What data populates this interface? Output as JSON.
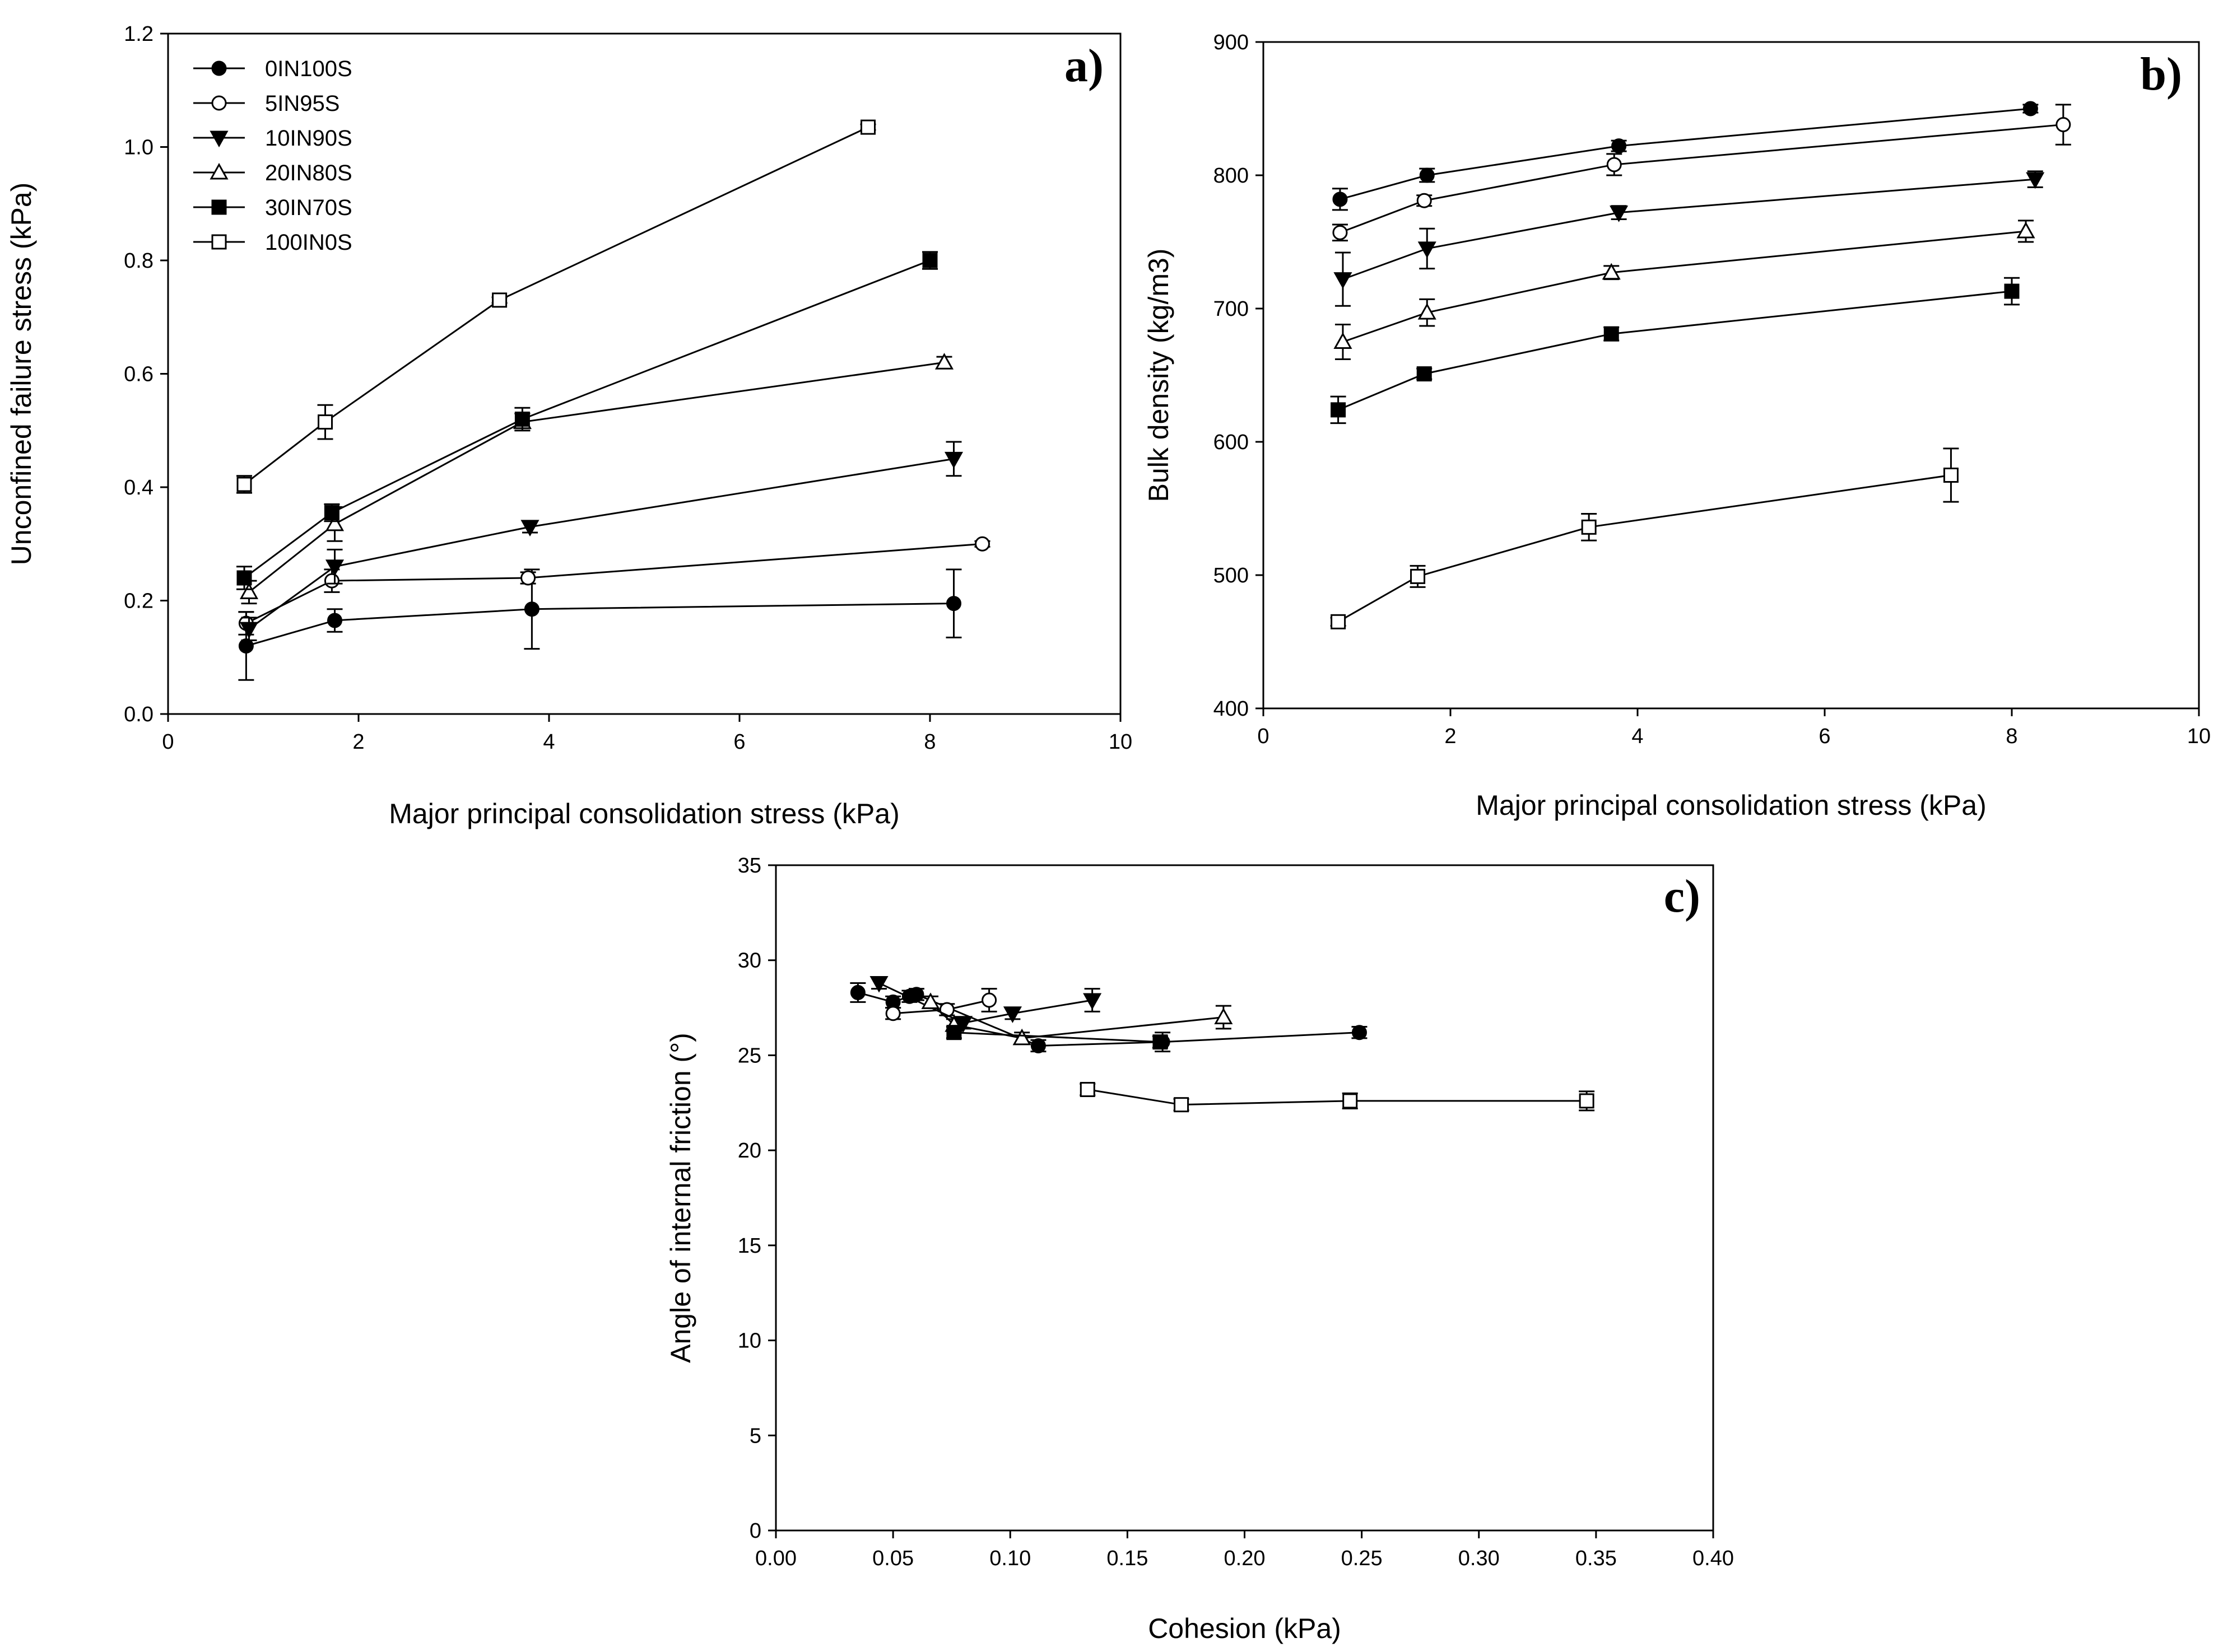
{
  "series_styles": [
    {
      "name": "0IN100S",
      "marker": "circle",
      "fill": "#000000"
    },
    {
      "name": "5IN95S",
      "marker": "circle",
      "fill": "#ffffff"
    },
    {
      "name": "10IN90S",
      "marker": "tri-down",
      "fill": "#000000"
    },
    {
      "name": "20IN80S",
      "marker": "tri-up",
      "fill": "#ffffff"
    },
    {
      "name": "30IN70S",
      "marker": "square",
      "fill": "#000000"
    },
    {
      "name": "100IN0S",
      "marker": "square",
      "fill": "#ffffff"
    }
  ],
  "chart_data": [
    {
      "panel": "a)",
      "type": "line",
      "xlabel": "Major principal consolidation stress (kPa)",
      "ylabel": "Unconfined failure stress (kPa)",
      "xlim": [
        0,
        10
      ],
      "ylim": [
        0,
        1.2
      ],
      "xticks": [
        0,
        2,
        4,
        6,
        8,
        10
      ],
      "xticklabels": [
        "0",
        "2",
        "4",
        "6",
        "8",
        "10"
      ],
      "yticks": [
        0,
        0.2,
        0.4,
        0.6,
        0.8,
        1.0,
        1.2
      ],
      "yticklabels": [
        "0.0",
        "0.2",
        "0.4",
        "0.6",
        "0.8",
        "1.0",
        "1.2"
      ],
      "legend": "top-left",
      "series": [
        {
          "name": "0IN100S",
          "x": [
            0.82,
            1.75,
            3.82,
            8.25
          ],
          "y": [
            0.12,
            0.165,
            0.185,
            0.195
          ],
          "err": [
            0.06,
            0.02,
            0.07,
            0.06
          ]
        },
        {
          "name": "5IN95S",
          "x": [
            0.82,
            1.72,
            3.78,
            8.55
          ],
          "y": [
            0.16,
            0.235,
            0.24,
            0.3
          ],
          "err": [
            0.02,
            0.02,
            0.01,
            0.005
          ]
        },
        {
          "name": "10IN90S",
          "x": [
            0.85,
            1.75,
            3.8,
            8.25
          ],
          "y": [
            0.15,
            0.26,
            0.33,
            0.45
          ],
          "err": [
            0.02,
            0.03,
            0.01,
            0.03
          ]
        },
        {
          "name": "20IN80S",
          "x": [
            0.85,
            1.75,
            3.72,
            8.15
          ],
          "y": [
            0.215,
            0.335,
            0.515,
            0.62
          ],
          "err": [
            0.02,
            0.03,
            0.015,
            0.01
          ]
        },
        {
          "name": "30IN70S",
          "x": [
            0.8,
            1.72,
            3.72,
            8.0
          ],
          "y": [
            0.24,
            0.355,
            0.52,
            0.8
          ],
          "err": [
            0.02,
            0.015,
            0.02,
            0.015
          ]
        },
        {
          "name": "100IN0S",
          "x": [
            0.8,
            1.65,
            3.48,
            7.35
          ],
          "y": [
            0.405,
            0.515,
            0.73,
            1.035
          ],
          "err": [
            0.015,
            0.03,
            0.005,
            0.005
          ]
        }
      ]
    },
    {
      "panel": "b)",
      "type": "line",
      "xlabel": "Major principal consolidation stress (kPa)",
      "ylabel": "Bulk density (kg/m3)",
      "xlim": [
        0,
        10
      ],
      "ylim": [
        400,
        900
      ],
      "xticks": [
        0,
        2,
        4,
        6,
        8,
        10
      ],
      "xticklabels": [
        "0",
        "2",
        "4",
        "6",
        "8",
        "10"
      ],
      "yticks": [
        400,
        500,
        600,
        700,
        800,
        900
      ],
      "yticklabels": [
        "400",
        "500",
        "600",
        "700",
        "800",
        "900"
      ],
      "series": [
        {
          "name": "0IN100S",
          "x": [
            0.82,
            1.75,
            3.8,
            8.2
          ],
          "y": [
            782,
            800,
            822,
            850
          ],
          "err": [
            8,
            5,
            4,
            3
          ]
        },
        {
          "name": "5IN95S",
          "x": [
            0.82,
            1.72,
            3.75,
            8.55
          ],
          "y": [
            757,
            781,
            808,
            838
          ],
          "err": [
            6,
            4,
            8,
            15
          ]
        },
        {
          "name": "10IN90S",
          "x": [
            0.85,
            1.75,
            3.8,
            8.25
          ],
          "y": [
            722,
            745,
            772,
            797
          ],
          "err": [
            20,
            15,
            5,
            6
          ]
        },
        {
          "name": "20IN80S",
          "x": [
            0.85,
            1.75,
            3.72,
            8.15
          ],
          "y": [
            675,
            697,
            727,
            758
          ],
          "err": [
            13,
            10,
            5,
            8
          ]
        },
        {
          "name": "30IN70S",
          "x": [
            0.8,
            1.72,
            3.72,
            8.0
          ],
          "y": [
            624,
            651,
            681,
            713
          ],
          "err": [
            10,
            4,
            5,
            10
          ]
        },
        {
          "name": "100IN0S",
          "x": [
            0.8,
            1.65,
            3.48,
            7.35
          ],
          "y": [
            465,
            499,
            536,
            575
          ],
          "err": [
            3,
            8,
            10,
            20
          ]
        }
      ]
    },
    {
      "panel": "c)",
      "type": "line",
      "xlabel": "Cohesion (kPa)",
      "ylabel": "Angle of internal friction (°)",
      "xlim": [
        0,
        0.4
      ],
      "ylim": [
        0,
        35
      ],
      "xticks": [
        0,
        0.05,
        0.1,
        0.15,
        0.2,
        0.25,
        0.3,
        0.35,
        0.4
      ],
      "xticklabels": [
        "0.00",
        "0.05",
        "0.10",
        "0.15",
        "0.20",
        "0.25",
        "0.30",
        "0.35",
        "0.40"
      ],
      "yticks": [
        0,
        5,
        10,
        15,
        20,
        25,
        30,
        35
      ],
      "yticklabels": [
        "0",
        "5",
        "10",
        "15",
        "20",
        "25",
        "30",
        "35"
      ],
      "series": [
        {
          "name": "0IN100S",
          "x": [
            0.035,
            0.05,
            0.057,
            0.06,
            0.112,
            0.165,
            0.249
          ],
          "y": [
            28.3,
            27.8,
            28.1,
            28.2,
            25.5,
            25.7,
            26.2
          ],
          "err": [
            0.5,
            0.3,
            0.3,
            0.3,
            0.3,
            0.5,
            0.3
          ]
        },
        {
          "name": "5IN95S",
          "x": [
            0.05,
            0.073,
            0.091
          ],
          "y": [
            27.2,
            27.4,
            27.9
          ],
          "err": [
            0.3,
            0.3,
            0.6
          ]
        },
        {
          "name": "10IN90S",
          "x": [
            0.044,
            0.08,
            0.101,
            0.135
          ],
          "y": [
            28.8,
            26.7,
            27.2,
            27.9
          ],
          "err": [
            0.3,
            0.3,
            0.3,
            0.6
          ]
        },
        {
          "name": "20IN80S",
          "x": [
            0.066,
            0.076,
            0.105,
            0.191
          ],
          "y": [
            27.8,
            26.6,
            25.9,
            27.0
          ],
          "err": [
            0.3,
            0.3,
            0.3,
            0.6
          ]
        },
        {
          "name": "30IN70S",
          "x": [
            0.076,
            0.164
          ],
          "y": [
            26.2,
            25.7
          ],
          "err": [
            0.3,
            0.3
          ]
        },
        {
          "name": "100IN0S",
          "x": [
            0.133,
            0.173,
            0.245,
            0.346
          ],
          "y": [
            23.2,
            22.4,
            22.6,
            22.6
          ],
          "err": [
            0.3,
            0.3,
            0.4,
            0.5
          ]
        }
      ]
    }
  ]
}
